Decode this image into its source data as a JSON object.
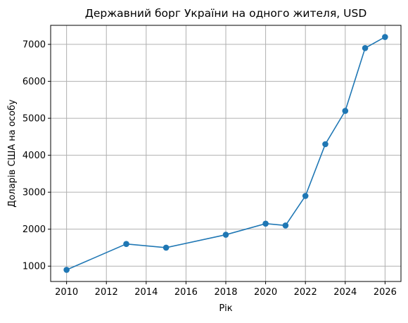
{
  "chart_data": {
    "type": "line",
    "title": "Державний борг України на одного жителя, USD",
    "xlabel": "Рік",
    "ylabel": "Доларів США на особу",
    "x": [
      2010,
      2013,
      2015,
      2018,
      2020,
      2021,
      2022,
      2023,
      2024,
      2025,
      2026
    ],
    "series": [
      {
        "values": [
          900,
          1600,
          1500,
          1850,
          2150,
          2100,
          2900,
          4300,
          5200,
          6900,
          7200
        ],
        "color": "#1f77b4",
        "marker": "circle"
      }
    ],
    "xlim": [
      2009.2,
      2026.8
    ],
    "ylim": [
      585,
      7515
    ],
    "xticks": [
      2010,
      2012,
      2014,
      2016,
      2018,
      2020,
      2022,
      2024,
      2026
    ],
    "yticks": [
      1000,
      2000,
      3000,
      4000,
      5000,
      6000,
      7000
    ],
    "grid": true
  }
}
